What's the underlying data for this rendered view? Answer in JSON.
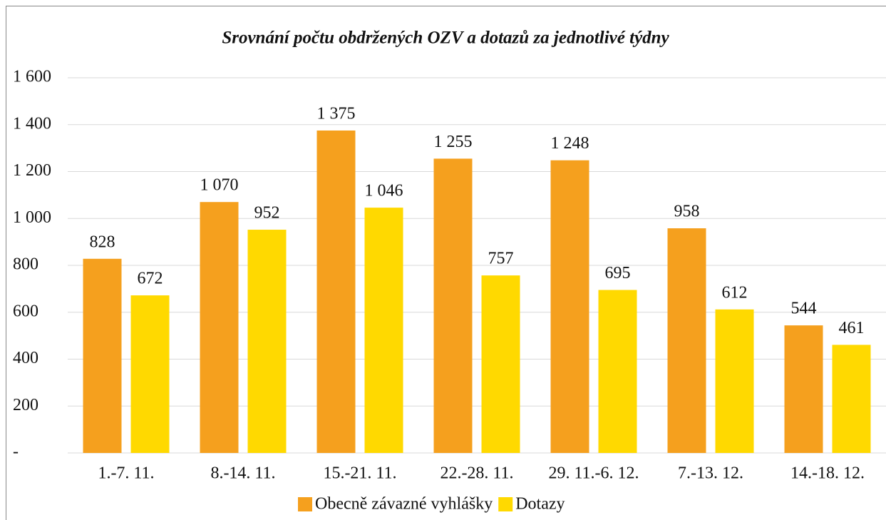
{
  "chart_data": {
    "type": "bar",
    "title": "Srovnání počtu obdržených OZV a dotazů za jednotlivé týdny",
    "categories": [
      "1.-7. 11.",
      "8.-14. 11.",
      "15.-21. 11.",
      "22.-28. 11.",
      "29. 11.-6. 12.",
      "7.-13. 12.",
      "14.-18. 12."
    ],
    "series": [
      {
        "name": "Obecně závazné vyhlášky",
        "color": "#f5a01e",
        "values": [
          828,
          1070,
          1375,
          1255,
          1248,
          958,
          544
        ],
        "value_labels": [
          "828",
          "1 070",
          "1 375",
          "1 255",
          "1 248",
          "958",
          "544"
        ]
      },
      {
        "name": "Dotazy",
        "color": "#ffd900",
        "values": [
          672,
          952,
          1046,
          757,
          695,
          612,
          461
        ],
        "value_labels": [
          "672",
          "952",
          "1 046",
          "757",
          "695",
          "612",
          "461"
        ]
      }
    ],
    "ylim": [
      0,
      1600
    ],
    "yticks": [
      {
        "value": 0,
        "label": "-"
      },
      200,
      400,
      600,
      800,
      {
        "value": 1000,
        "label": "1 000"
      },
      {
        "value": 1200,
        "label": "1 200"
      },
      {
        "value": 1400,
        "label": "1 400"
      },
      {
        "value": 1600,
        "label": "1 600"
      }
    ],
    "grid": true,
    "legend": "bottom"
  }
}
